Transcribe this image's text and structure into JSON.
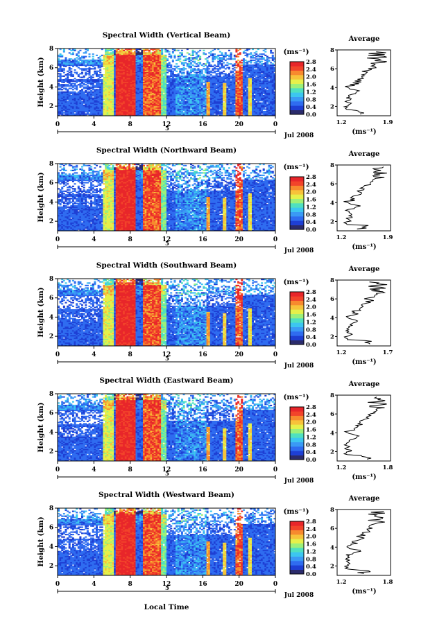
{
  "chart_data": [
    {
      "type": "heatmap",
      "title": "Spectral Width (Vertical Beam)",
      "ylabel": "Height (km)",
      "yticks": [
        "2",
        "4",
        "6",
        "8"
      ],
      "xticks": [
        "0",
        "4",
        "8",
        "12",
        "16",
        "20",
        "0"
      ],
      "x_range": [
        0,
        24
      ],
      "y_range": [
        1,
        8
      ],
      "day_label": "5",
      "date_label": "Jul 2008",
      "cbar_label": "(ms⁻¹)",
      "cbar_ticks": [
        "0.0",
        "0.4",
        "0.8",
        "1.2",
        "1.6",
        "2.0",
        "2.4",
        "2.8"
      ],
      "cbar_range": [
        0,
        2.8
      ],
      "avg_title": "Average",
      "avg_xlabel": "(ms⁻¹)",
      "avg_xticks": [
        "1.2",
        "1.9"
      ]
    },
    {
      "type": "heatmap",
      "title": "Spectral Width (Northward Beam)",
      "ylabel": "Height (km)",
      "yticks": [
        "2",
        "4",
        "6",
        "8"
      ],
      "xticks": [
        "0",
        "4",
        "8",
        "12",
        "16",
        "20",
        "0"
      ],
      "x_range": [
        0,
        24
      ],
      "y_range": [
        1,
        8
      ],
      "day_label": "5",
      "date_label": "Jul 2008",
      "cbar_label": "(ms⁻¹)",
      "cbar_ticks": [
        "0.0",
        "0.4",
        "0.8",
        "1.2",
        "1.6",
        "2.0",
        "2.4",
        "2.8"
      ],
      "cbar_range": [
        0,
        2.8
      ],
      "avg_title": "Average",
      "avg_xlabel": "(ms⁻¹)",
      "avg_xticks": [
        "1.2",
        "1.9"
      ]
    },
    {
      "type": "heatmap",
      "title": "Spectral Width (Southward Beam)",
      "ylabel": "Height (km)",
      "yticks": [
        "2",
        "4",
        "6",
        "8"
      ],
      "xticks": [
        "0",
        "4",
        "8",
        "12",
        "16",
        "20",
        "0"
      ],
      "x_range": [
        0,
        24
      ],
      "y_range": [
        1,
        8
      ],
      "day_label": "5",
      "date_label": "Jul 2008",
      "cbar_label": "(ms⁻¹)",
      "cbar_ticks": [
        "0.0",
        "0.4",
        "0.8",
        "1.2",
        "1.6",
        "2.0",
        "2.4",
        "2.8"
      ],
      "cbar_range": [
        0,
        2.8
      ],
      "avg_title": "Average",
      "avg_xlabel": "(ms⁻¹)",
      "avg_xticks": [
        "1.2",
        "1.7"
      ]
    },
    {
      "type": "heatmap",
      "title": "Spectral Width (Eastward Beam)",
      "ylabel": "Height (km)",
      "yticks": [
        "2",
        "4",
        "6",
        "8"
      ],
      "xticks": [
        "0",
        "4",
        "8",
        "12",
        "16",
        "20",
        "0"
      ],
      "x_range": [
        0,
        24
      ],
      "y_range": [
        1,
        8
      ],
      "day_label": "5",
      "date_label": "Jul 2008",
      "cbar_label": "(ms⁻¹)",
      "cbar_ticks": [
        "0.0",
        "0.4",
        "0.8",
        "1.2",
        "1.6",
        "2.0",
        "2.4",
        "2.8"
      ],
      "cbar_range": [
        0,
        2.8
      ],
      "avg_title": "Average",
      "avg_xlabel": "(ms⁻¹)",
      "avg_xticks": [
        "1.2",
        "1.8"
      ]
    },
    {
      "type": "heatmap",
      "title": "Spectral Width (Westward Beam)",
      "ylabel": "Height (km)",
      "yticks": [
        "2",
        "4",
        "6",
        "8"
      ],
      "xticks": [
        "0",
        "4",
        "8",
        "12",
        "16",
        "20",
        "0"
      ],
      "x_range": [
        0,
        24
      ],
      "y_range": [
        1,
        8
      ],
      "day_label": "5",
      "date_label": "Jul 2008",
      "cbar_label": "(ms⁻¹)",
      "cbar_ticks": [
        "0.0",
        "0.4",
        "0.8",
        "1.2",
        "1.6",
        "2.0",
        "2.4",
        "2.8"
      ],
      "cbar_range": [
        0,
        2.8
      ],
      "avg_title": "Average",
      "avg_xlabel": "(ms⁻¹)",
      "avg_xticks": [
        "1.2",
        "1.8"
      ]
    }
  ],
  "xlabel": "Local Time",
  "colormap": [
    "#2b2b6b",
    "#1e3fd4",
    "#2f6cf0",
    "#3a9af5",
    "#3cc6f0",
    "#4fe0c0",
    "#9cf07a",
    "#e6f04a",
    "#f7c23a",
    "#f78a2e",
    "#f2442a",
    "#e8262a"
  ]
}
